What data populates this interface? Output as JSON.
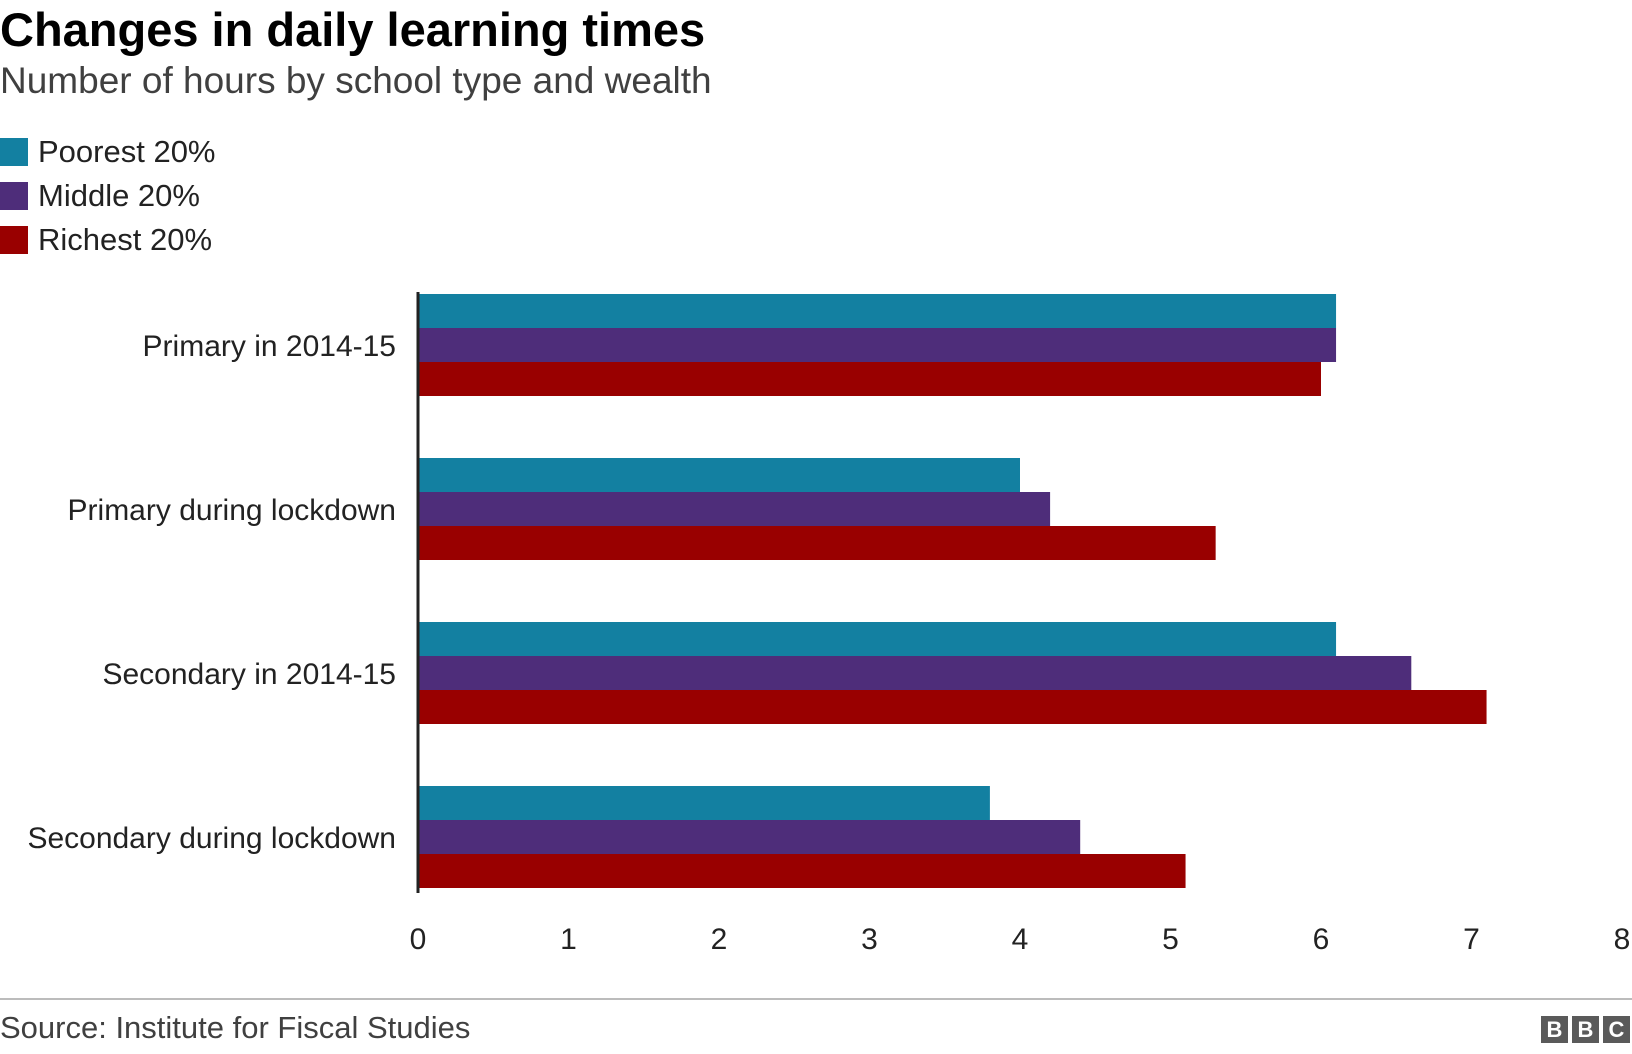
{
  "header": {
    "title": "Changes in daily learning times",
    "subtitle": "Number of hours by school type and wealth"
  },
  "legend": {
    "placement": "top-left",
    "items": [
      {
        "label": "Poorest 20%",
        "color": "#1380a1"
      },
      {
        "label": "Middle 20%",
        "color": "#4e2d7a"
      },
      {
        "label": "Richest 20%",
        "color": "#990000"
      }
    ]
  },
  "footer": {
    "source": "Source: Institute for Fiscal Studies",
    "logo": [
      "B",
      "B",
      "C"
    ]
  },
  "chart_data": {
    "type": "bar",
    "orientation": "horizontal",
    "title": "Changes in daily learning times",
    "subtitle": "Number of hours by school type and wealth",
    "xlabel": "",
    "ylabel": "",
    "categories": [
      "Primary in 2014-15",
      "Primary during lockdown",
      "Secondary in 2014-15",
      "Secondary during lockdown"
    ],
    "series": [
      {
        "name": "Poorest 20%",
        "color": "#1380a1",
        "values": [
          6.1,
          4.0,
          6.1,
          3.8
        ]
      },
      {
        "name": "Middle 20%",
        "color": "#4e2d7a",
        "values": [
          6.1,
          4.2,
          6.6,
          4.4
        ]
      },
      {
        "name": "Richest 20%",
        "color": "#990000",
        "values": [
          6.0,
          5.3,
          7.1,
          5.1
        ]
      }
    ],
    "xlim": [
      0,
      8
    ],
    "xticks": [
      0,
      1,
      2,
      3,
      4,
      5,
      6,
      7,
      8
    ],
    "grid": false
  }
}
